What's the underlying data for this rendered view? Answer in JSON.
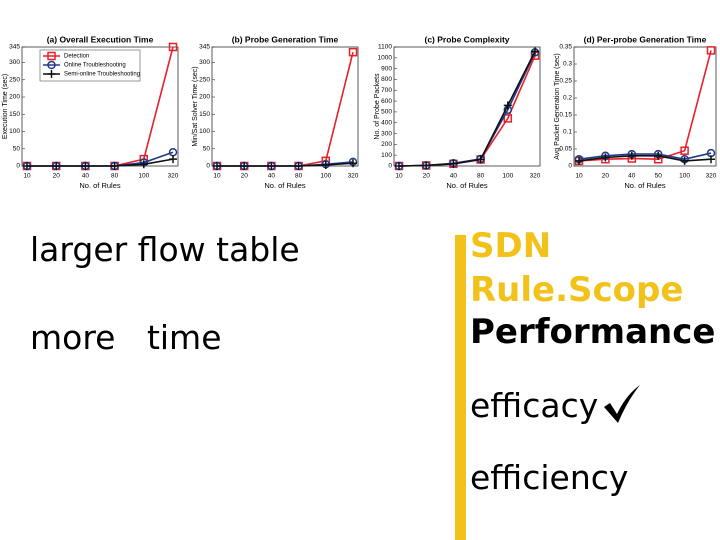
{
  "chart_data": [
    {
      "type": "line",
      "title": "(a) Overall Execution Time",
      "xlabel": "No. of Rules",
      "ylabel": "Execution Time (sec)",
      "categories": [
        "10",
        "20",
        "40",
        "80",
        "100",
        "320"
      ],
      "ylim": [
        0,
        345
      ],
      "yticks": [
        0,
        50,
        100,
        150,
        200,
        250,
        300,
        345
      ],
      "legend": "upper left",
      "series": [
        {
          "name": "Detection",
          "color": "#e8202a",
          "marker": "square",
          "values": [
            0,
            0,
            0,
            0,
            20,
            345
          ]
        },
        {
          "name": "Online Troubleshooting",
          "color": "#1f3a8a",
          "marker": "circle",
          "values": [
            0,
            0,
            0,
            0,
            10,
            40
          ]
        },
        {
          "name": "Semi-online Troubleshooting",
          "color": "#111111",
          "marker": "plus",
          "values": [
            0,
            0,
            0,
            0,
            5,
            20
          ]
        }
      ]
    },
    {
      "type": "line",
      "title": "(b) Probe Generation Time",
      "xlabel": "No. of Rules",
      "ylabel": "Min/Sat Solver Time (sec)",
      "categories": [
        "10",
        "20",
        "40",
        "80",
        "100",
        "320"
      ],
      "ylim": [
        0,
        345
      ],
      "yticks": [
        0,
        50,
        100,
        150,
        200,
        250,
        300,
        345
      ],
      "series": [
        {
          "color": "#e8202a",
          "marker": "square",
          "values": [
            0,
            0,
            0,
            0,
            15,
            330
          ]
        },
        {
          "color": "#1f3a8a",
          "marker": "circle",
          "values": [
            0,
            0,
            0,
            0,
            5,
            12
          ]
        },
        {
          "color": "#111111",
          "marker": "plus",
          "values": [
            0,
            0,
            0,
            0,
            3,
            8
          ]
        }
      ]
    },
    {
      "type": "line",
      "title": "(c) Probe Complexity",
      "xlabel": "No. of Rules",
      "ylabel": "No. of Probe Packets",
      "categories": [
        "10",
        "20",
        "40",
        "80",
        "100",
        "320"
      ],
      "ylim": [
        0,
        1100
      ],
      "yticks": [
        0,
        100,
        200,
        300,
        400,
        500,
        600,
        700,
        800,
        900,
        1000,
        1100
      ],
      "series": [
        {
          "color": "#e8202a",
          "marker": "square",
          "values": [
            0,
            5,
            20,
            60,
            440,
            1020
          ]
        },
        {
          "color": "#1f3a8a",
          "marker": "circle",
          "values": [
            0,
            5,
            25,
            65,
            520,
            1050
          ]
        },
        {
          "color": "#111111",
          "marker": "plus",
          "values": [
            0,
            5,
            20,
            60,
            560,
            1060
          ]
        }
      ]
    },
    {
      "type": "line",
      "title": "(d) Per-probe Generation Time",
      "xlabel": "No. of Rules",
      "ylabel": "Avg Packet Generation Time (sec)",
      "categories": [
        "10",
        "20",
        "40",
        "50",
        "100",
        "320"
      ],
      "ylim": [
        0,
        0.35
      ],
      "yticks": [
        0,
        0.05,
        0.1,
        0.15,
        0.2,
        0.25,
        0.3,
        0.35
      ],
      "series": [
        {
          "color": "#e8202a",
          "marker": "square",
          "values": [
            0.015,
            0.02,
            0.022,
            0.02,
            0.045,
            0.34
          ]
        },
        {
          "color": "#1f3a8a",
          "marker": "circle",
          "values": [
            0.02,
            0.03,
            0.035,
            0.035,
            0.02,
            0.038
          ]
        },
        {
          "color": "#111111",
          "marker": "plus",
          "values": [
            0.015,
            0.025,
            0.03,
            0.03,
            0.015,
            0.02
          ]
        }
      ]
    }
  ],
  "slide": {
    "left_lines": [
      "larger flow table",
      "more   time"
    ],
    "heading_lines": [
      "SDN",
      "Rule.Scope",
      "Performance"
    ],
    "bullets": [
      "efficacy",
      "efficiency"
    ]
  }
}
